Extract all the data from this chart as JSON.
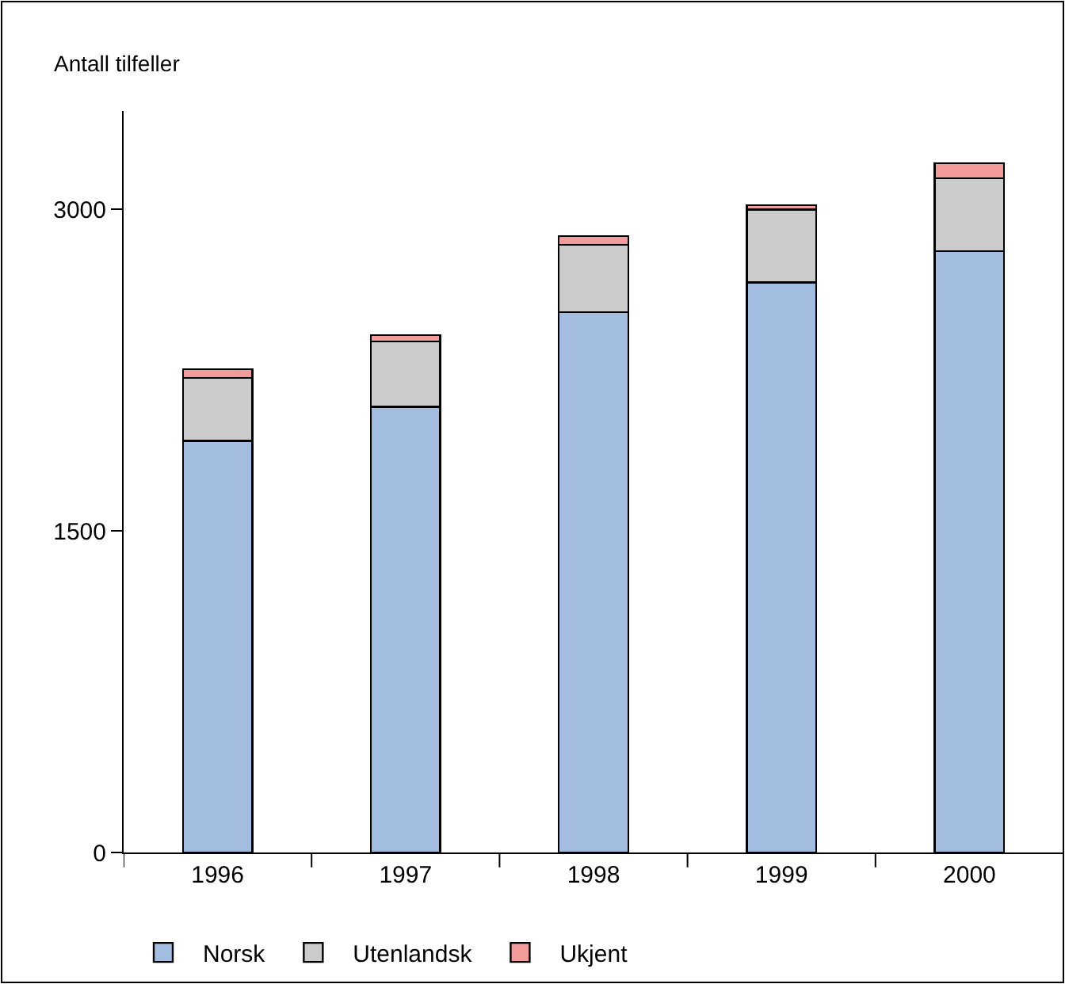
{
  "chart_data": {
    "type": "bar",
    "stacked": true,
    "ylabel": "Antall tilfeller",
    "categories": [
      "1996",
      "1997",
      "1998",
      "1999",
      "2000"
    ],
    "series": [
      {
        "name": "Norsk",
        "color": "#a3bde0",
        "values": [
          1920,
          2080,
          2520,
          2660,
          2805
        ]
      },
      {
        "name": "Utenlandsk",
        "color": "#cbcbcb",
        "values": [
          295,
          305,
          315,
          340,
          340
        ]
      },
      {
        "name": "Ukjent",
        "color": "#f29b9b",
        "values": [
          40,
          30,
          40,
          20,
          70
        ]
      }
    ],
    "ylim": [
      0,
      3460
    ],
    "yticks": [
      0,
      1500,
      3000
    ],
    "legend": "bottom"
  }
}
